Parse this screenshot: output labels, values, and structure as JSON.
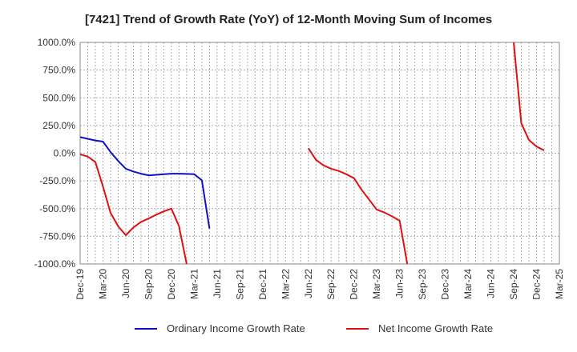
{
  "chart_data": {
    "type": "line",
    "title": "[7421]  Trend of Growth Rate (YoY) of 12-Month Moving Sum of Incomes",
    "xlabel": "",
    "ylabel": "",
    "ylim": [
      -1000,
      1000
    ],
    "y_ticks": [
      1000,
      750,
      500,
      250,
      0,
      -250,
      -500,
      -750,
      -1000
    ],
    "y_tick_labels": [
      "1000.0%",
      "750.0%",
      "500.0%",
      "250.0%",
      "0.0%",
      "-250.0%",
      "-500.0%",
      "-750.0%",
      "-1000.0%"
    ],
    "x_range": [
      "2019-12",
      "2025-03"
    ],
    "x_tick_labels": [
      "Dec-19",
      "Mar-20",
      "Jun-20",
      "Sep-20",
      "Dec-20",
      "Mar-21",
      "Jun-21",
      "Sep-21",
      "Dec-21",
      "Mar-22",
      "Jun-22",
      "Sep-22",
      "Dec-22",
      "Mar-23",
      "Jun-23",
      "Sep-23",
      "Dec-23",
      "Mar-24",
      "Jun-24",
      "Sep-24",
      "Dec-24",
      "Mar-25"
    ],
    "grid": true,
    "legend_position": "bottom",
    "series": [
      {
        "name": "Ordinary Income Growth Rate",
        "color": "#1010c8",
        "points": [
          [
            "2019-12",
            145
          ],
          [
            "2020-01",
            130
          ],
          [
            "2020-02",
            115
          ],
          [
            "2020-03",
            105
          ],
          [
            "2020-04",
            10
          ],
          [
            "2020-05",
            -70
          ],
          [
            "2020-06",
            -140
          ],
          [
            "2020-07",
            -165
          ],
          [
            "2020-08",
            -185
          ],
          [
            "2020-09",
            -200
          ],
          [
            "2020-10",
            -195
          ],
          [
            "2020-11",
            -190
          ],
          [
            "2020-12",
            -185
          ],
          [
            "2021-01",
            -185
          ],
          [
            "2021-02",
            -187
          ],
          [
            "2021-03",
            -190
          ],
          [
            "2021-04",
            -245
          ],
          [
            "2021-05",
            -680
          ]
        ]
      },
      {
        "name": "Net Income Growth Rate",
        "color": "#e01010",
        "points": [
          [
            "2019-12",
            -10
          ],
          [
            "2020-01",
            -30
          ],
          [
            "2020-02",
            -80
          ],
          [
            "2020-03",
            -300
          ],
          [
            "2020-04",
            -540
          ],
          [
            "2020-05",
            -660
          ],
          [
            "2020-06",
            -740
          ],
          [
            "2020-07",
            -670
          ],
          [
            "2020-08",
            -620
          ],
          [
            "2020-09",
            -590
          ],
          [
            "2020-10",
            -555
          ],
          [
            "2020-11",
            -525
          ],
          [
            "2020-12",
            -500
          ],
          [
            "2021-01",
            -660
          ],
          [
            "2021-02",
            -1000
          ],
          null,
          [
            "2022-06",
            45
          ],
          [
            "2022-07",
            -60
          ],
          [
            "2022-08",
            -110
          ],
          [
            "2022-09",
            -140
          ],
          [
            "2022-10",
            -160
          ],
          [
            "2022-11",
            -190
          ],
          [
            "2022-12",
            -225
          ],
          [
            "2023-01",
            -330
          ],
          [
            "2023-02",
            -420
          ],
          [
            "2023-03",
            -510
          ],
          [
            "2023-04",
            -535
          ],
          [
            "2023-05",
            -570
          ],
          [
            "2023-06",
            -610
          ],
          [
            "2023-07",
            -1000
          ],
          null,
          [
            "2024-09",
            1000
          ],
          [
            "2024-10",
            270
          ],
          [
            "2024-11",
            120
          ],
          [
            "2024-12",
            60
          ],
          [
            "2025-01",
            25
          ]
        ]
      }
    ]
  }
}
